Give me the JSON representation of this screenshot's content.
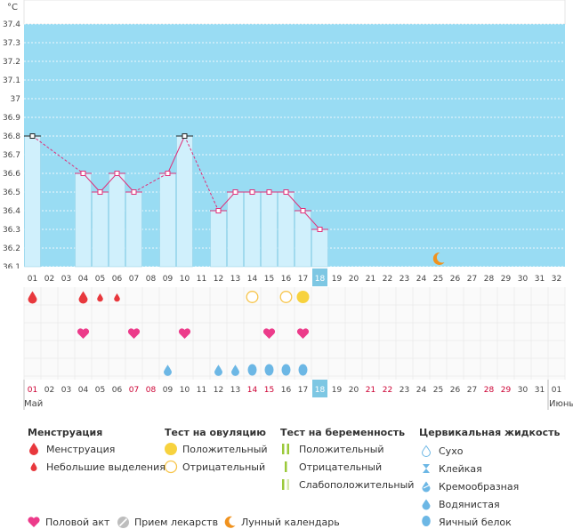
{
  "chart_data": {
    "type": "line",
    "title": "",
    "unit_label": "°C",
    "ylim": [
      36.1,
      37.4
    ],
    "y_ticks": [
      "37.4",
      "37.3",
      "37.2",
      "37.1",
      "37",
      "36.9",
      "36.8",
      "36.7",
      "36.6",
      "36.5",
      "36.4",
      "36.3",
      "36.2",
      "36.1"
    ],
    "days": [
      "01",
      "02",
      "03",
      "04",
      "05",
      "06",
      "07",
      "08",
      "09",
      "10",
      "11",
      "12",
      "13",
      "14",
      "15",
      "16",
      "17",
      "18",
      "19",
      "20",
      "21",
      "22",
      "23",
      "24",
      "25",
      "26",
      "27",
      "28",
      "29",
      "30",
      "31",
      "32"
    ],
    "today_day": "18",
    "temperatures": [
      {
        "day": 1,
        "value": 36.8
      },
      {
        "day": 4,
        "value": 36.6
      },
      {
        "day": 5,
        "value": 36.5
      },
      {
        "day": 6,
        "value": 36.6
      },
      {
        "day": 7,
        "value": 36.5
      },
      {
        "day": 9,
        "value": 36.6
      },
      {
        "day": 10,
        "value": 36.8
      },
      {
        "day": 12,
        "value": 36.4
      },
      {
        "day": 13,
        "value": 36.5
      },
      {
        "day": 14,
        "value": 36.5
      },
      {
        "day": 15,
        "value": 36.5
      },
      {
        "day": 16,
        "value": 36.5
      },
      {
        "day": 17,
        "value": 36.4
      },
      {
        "day": 18,
        "value": 36.3
      }
    ],
    "bars_from_days": [
      1,
      4,
      5,
      6,
      7,
      9,
      10,
      12,
      13,
      14,
      15,
      16,
      17,
      18
    ],
    "moon_day": 25,
    "colors": {
      "plot_bg": "#99dcf3",
      "bar": "#d0f0fc",
      "line": "#e0307a",
      "marker_border": "#333333",
      "today_bg": "#7dc7e3",
      "menstruation": "#e8383d",
      "ovulation_positive": "#f7d23e",
      "ovulation_negative": "#f7c54b",
      "heart": "#ec3b8a",
      "fluid": "#6cb7e5",
      "weekend_red": "#cc0033",
      "moon": "#f0921e"
    }
  },
  "rows": {
    "menstruation": [
      {
        "day": 1,
        "kind": "big"
      },
      {
        "day": 4,
        "kind": "big"
      },
      {
        "day": 5,
        "kind": "small"
      },
      {
        "day": 6,
        "kind": "small"
      }
    ],
    "ovulation_tests": [
      {
        "day": 14,
        "kind": "negative"
      },
      {
        "day": 16,
        "kind": "negative"
      },
      {
        "day": 17,
        "kind": "positive"
      }
    ],
    "intercourse_days": [
      4,
      7,
      10,
      15,
      17
    ],
    "fluid": [
      {
        "day": 9,
        "kind": "watery"
      },
      {
        "day": 12,
        "kind": "watery"
      },
      {
        "day": 13,
        "kind": "watery"
      },
      {
        "day": 14,
        "kind": "eggwhite"
      },
      {
        "day": 15,
        "kind": "eggwhite"
      },
      {
        "day": 16,
        "kind": "eggwhite"
      },
      {
        "day": 17,
        "kind": "eggwhite"
      }
    ]
  },
  "bottom_axis": {
    "labels": [
      "01",
      "02",
      "03",
      "04",
      "05",
      "06",
      "07",
      "08",
      "09",
      "10",
      "11",
      "12",
      "13",
      "14",
      "15",
      "16",
      "17",
      "18",
      "19",
      "20",
      "21",
      "22",
      "23",
      "24",
      "25",
      "26",
      "27",
      "28",
      "29",
      "30",
      "31"
    ],
    "red_days": [
      1,
      7,
      8,
      14,
      15,
      21,
      22,
      28,
      29
    ],
    "next_month_first": "01",
    "month_current": "Май",
    "month_next": "Июнь"
  },
  "legend": {
    "menstruation": {
      "title": "Менструация",
      "items": [
        "Менструация",
        "Небольшие выделения"
      ]
    },
    "ovulation": {
      "title": "Тест на овуляцию",
      "items": [
        "Положительный",
        "Отрицательный"
      ]
    },
    "pregnancy": {
      "title": "Тест на беременность",
      "items": [
        "Положительный",
        "Отрицательный",
        "Слабоположительный"
      ]
    },
    "fluid": {
      "title": "Цервикальная жидкость",
      "items": [
        "Сухо",
        "Клейкая",
        "Кремообразная",
        "Водянистая",
        "Яичный белок"
      ]
    },
    "footer": [
      "Половой акт",
      "Прием лекарств",
      "Лунный календарь"
    ]
  }
}
